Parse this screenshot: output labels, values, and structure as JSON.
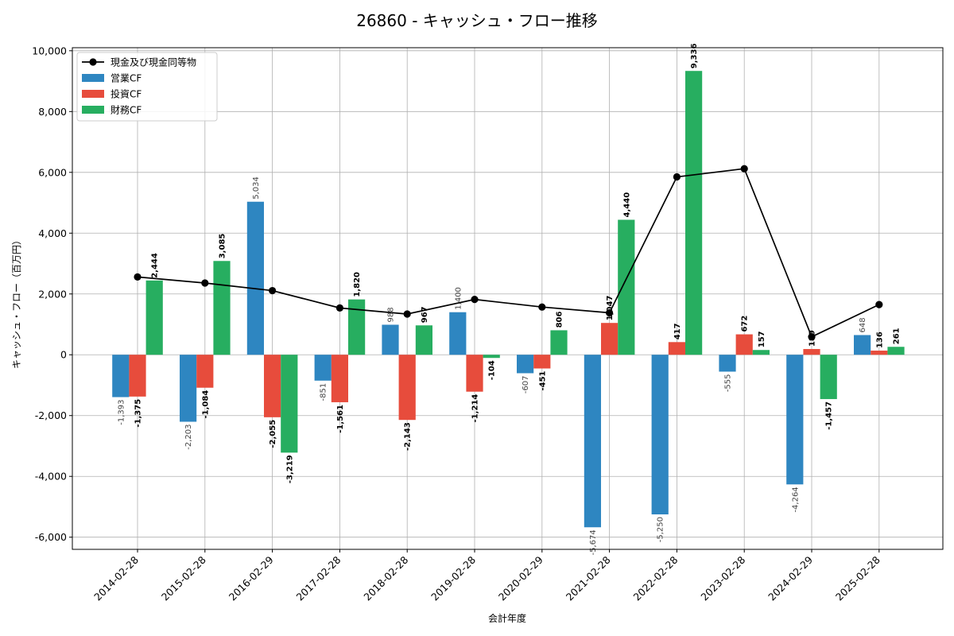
{
  "chart_data": {
    "type": "bar",
    "title": "26860 - キャッシュ・フロー推移",
    "xlabel": "会計年度",
    "ylabel": "キャッシュ・フロー（百万円）",
    "ylim": [
      -6400,
      10100
    ],
    "yticks": [
      -6000,
      -4000,
      -2000,
      0,
      2000,
      4000,
      6000,
      8000,
      10000
    ],
    "ytick_labels": [
      "-6,000",
      "-4,000",
      "-2,000",
      "0",
      "2,000",
      "4,000",
      "6,000",
      "8,000",
      "10,000"
    ],
    "grid": true,
    "legend_position": "top-left",
    "categories": [
      "2014-02-28",
      "2015-02-28",
      "2016-02-29",
      "2017-02-28",
      "2018-02-28",
      "2019-02-28",
      "2020-02-29",
      "2021-02-28",
      "2022-02-28",
      "2023-02-28",
      "2024-02-29",
      "2025-02-28"
    ],
    "series": [
      {
        "name": "営業CF",
        "kind": "bar",
        "color": "#2e86c1",
        "values": [
          -1393,
          -2203,
          5034,
          -851,
          988,
          1400,
          -607,
          -5674,
          -5250,
          -555,
          -4264,
          648
        ],
        "labels": [
          "-1,393",
          "-2,203",
          "5,034",
          "-851",
          "988",
          "1,400",
          "-607",
          "-5,674",
          "-5,250",
          "-555",
          "-4,264",
          "648"
        ]
      },
      {
        "name": "投資CF",
        "kind": "bar",
        "color": "#e74c3c",
        "values": [
          -1375,
          -1084,
          -2055,
          -1561,
          -2143,
          -1214,
          -451,
          1047,
          417,
          672,
          189,
          136
        ],
        "labels": [
          "-1,375",
          "-1,084",
          "-2,055",
          "-1,561",
          "-2,143",
          "-1,214",
          "-451",
          "1,047",
          "417",
          "672",
          "189",
          "136"
        ]
      },
      {
        "name": "財務CF",
        "kind": "bar",
        "color": "#27ae60",
        "values": [
          2444,
          3085,
          -3219,
          1820,
          967,
          -104,
          806,
          4440,
          9336,
          157,
          -1457,
          261
        ],
        "labels": [
          "2,444",
          "3,085",
          "-3,219",
          "1,820",
          "967",
          "-104",
          "806",
          "4,440",
          "9,336",
          "157",
          "-1,457",
          "261"
        ]
      },
      {
        "name": "現金及び現金同等物",
        "kind": "line",
        "color": "#000000",
        "values": [
          2560,
          2360,
          2110,
          1540,
          1340,
          1820,
          1570,
          1380,
          5850,
          6120,
          590,
          1650
        ]
      }
    ]
  }
}
